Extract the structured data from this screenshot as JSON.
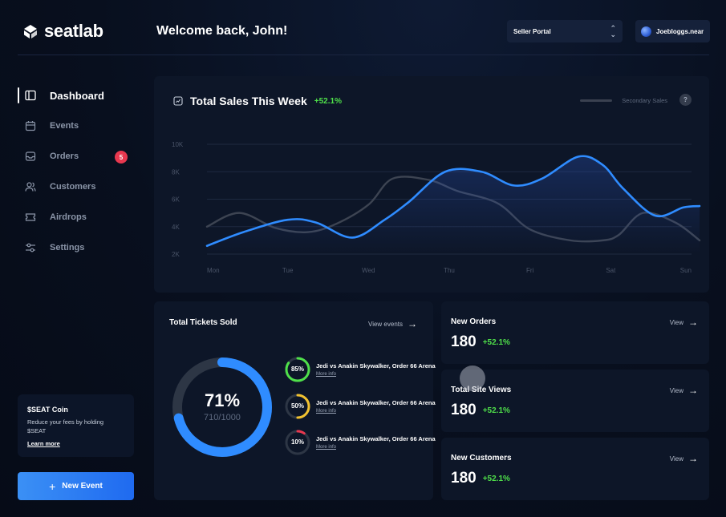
{
  "app": {
    "logo_text": "seatlab",
    "welcome": "Welcome back, John!"
  },
  "header": {
    "portal_select": "Seller Portal",
    "user": "Joebloggs.near"
  },
  "sidebar": {
    "items": [
      {
        "label": "Dashboard",
        "icon": "dashboard-icon",
        "active": true
      },
      {
        "label": "Events",
        "icon": "calendar-icon"
      },
      {
        "label": "Orders",
        "icon": "inbox-icon",
        "badge": "5"
      },
      {
        "label": "Customers",
        "icon": "users-icon"
      },
      {
        "label": "Airdrops",
        "icon": "ticket-icon"
      },
      {
        "label": "Settings",
        "icon": "sliders-icon"
      }
    ],
    "coin": {
      "title": "$SEAT Coin",
      "text": "Reduce your fees by holding $SEAT",
      "link": "Learn more"
    },
    "new_event": "New Event"
  },
  "sales": {
    "title": "Total Sales This Week",
    "change": "+52.1%",
    "legend_label": "Secondary Sales",
    "help": "?"
  },
  "chart_data": {
    "type": "line",
    "categories": [
      "Mon",
      "Tue",
      "Wed",
      "Thu",
      "Fri",
      "Sat",
      "Sun"
    ],
    "y_ticks": [
      "10K",
      "8K",
      "6K",
      "4K",
      "2K"
    ],
    "ylim": [
      2000,
      10000
    ],
    "grid": true,
    "legend_position": "top-right",
    "series": [
      {
        "color": "#2f8cff",
        "x": [
          0,
          0.45,
          1,
          1.35,
          1.8,
          2.2,
          2.5,
          2.95,
          3.4,
          3.8,
          4.15,
          4.6,
          4.9,
          5.15,
          5.55,
          5.9,
          6.1
        ],
        "values": [
          2600,
          3600,
          4500,
          4300,
          3200,
          4500,
          5800,
          8000,
          8000,
          7000,
          7500,
          9100,
          8500,
          6800,
          4800,
          5400,
          5500
        ]
      },
      {
        "name": "Secondary Sales",
        "color": "#3d4452",
        "x": [
          0,
          0.4,
          0.85,
          1.25,
          1.6,
          2,
          2.3,
          2.75,
          3.1,
          3.6,
          4,
          4.5,
          4.9,
          5.1,
          5.4,
          5.8,
          6.1
        ],
        "values": [
          4000,
          5000,
          3900,
          3600,
          4200,
          5600,
          7500,
          7400,
          6600,
          5700,
          3800,
          3000,
          3000,
          3400,
          5000,
          4300,
          3000
        ]
      }
    ]
  },
  "tickets": {
    "title": "Total Tickets Sold",
    "view_label": "View events",
    "percent": "71%",
    "sold": "710/1000",
    "progress": 0.71,
    "events": [
      {
        "pct": "85%",
        "value": 0.85,
        "color": "#4fe04a",
        "name": "Jedi vs Anakin Skywalker, Order 66 Arena",
        "more": "More info"
      },
      {
        "pct": "50%",
        "value": 0.5,
        "color": "#f2c230",
        "name": "Jedi vs Anakin Skywalker, Order 66 Arena",
        "more": "More info"
      },
      {
        "pct": "10%",
        "value": 0.1,
        "color": "#e8384f",
        "name": "Jedi vs Anakin Skywalker, Order 66 Arena",
        "more": "More info"
      }
    ]
  },
  "stats": [
    {
      "title": "New Orders",
      "value": "180",
      "change": "+52.1%",
      "view": "View"
    },
    {
      "title": "Total Site Views",
      "value": "180",
      "change": "+52.1%",
      "view": "View"
    },
    {
      "title": "New Customers",
      "value": "180",
      "change": "+52.1%",
      "view": "View"
    }
  ],
  "colors": {
    "accent": "#2f8cff",
    "positive": "#4fe04a",
    "badge": "#e8384f",
    "panel": "#0d1628"
  }
}
